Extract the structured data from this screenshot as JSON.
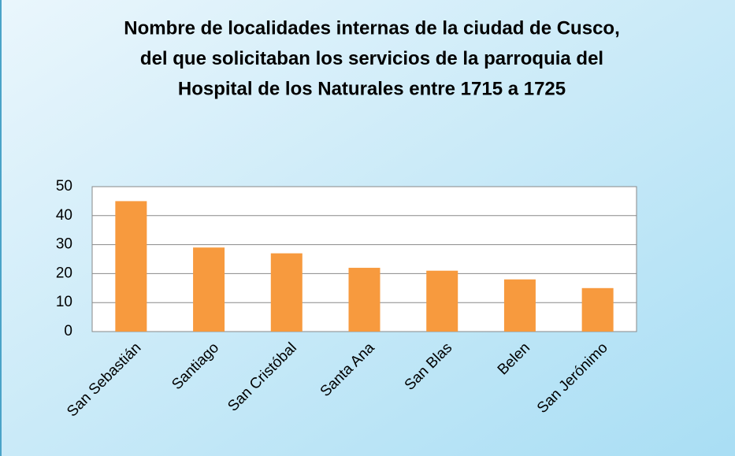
{
  "chart_data": {
    "type": "bar",
    "title": [
      "Nombre de localidades internas de la ciudad de Cusco,",
      "del  que solicitaban los servicios de la parroquia del",
      "Hospital de los Naturales entre 1715 a 1725"
    ],
    "categories": [
      "San Sebastián",
      "Santiago",
      "San Cristóbal",
      "Santa Ana",
      "San Blas",
      "Belen",
      "San Jerónimo"
    ],
    "values": [
      45,
      29,
      27,
      22,
      21,
      18,
      15
    ],
    "color": "#f79a3e",
    "ylim": [
      0,
      50
    ],
    "yticks": [
      0,
      10,
      20,
      30,
      40,
      50
    ],
    "grid": true
  }
}
